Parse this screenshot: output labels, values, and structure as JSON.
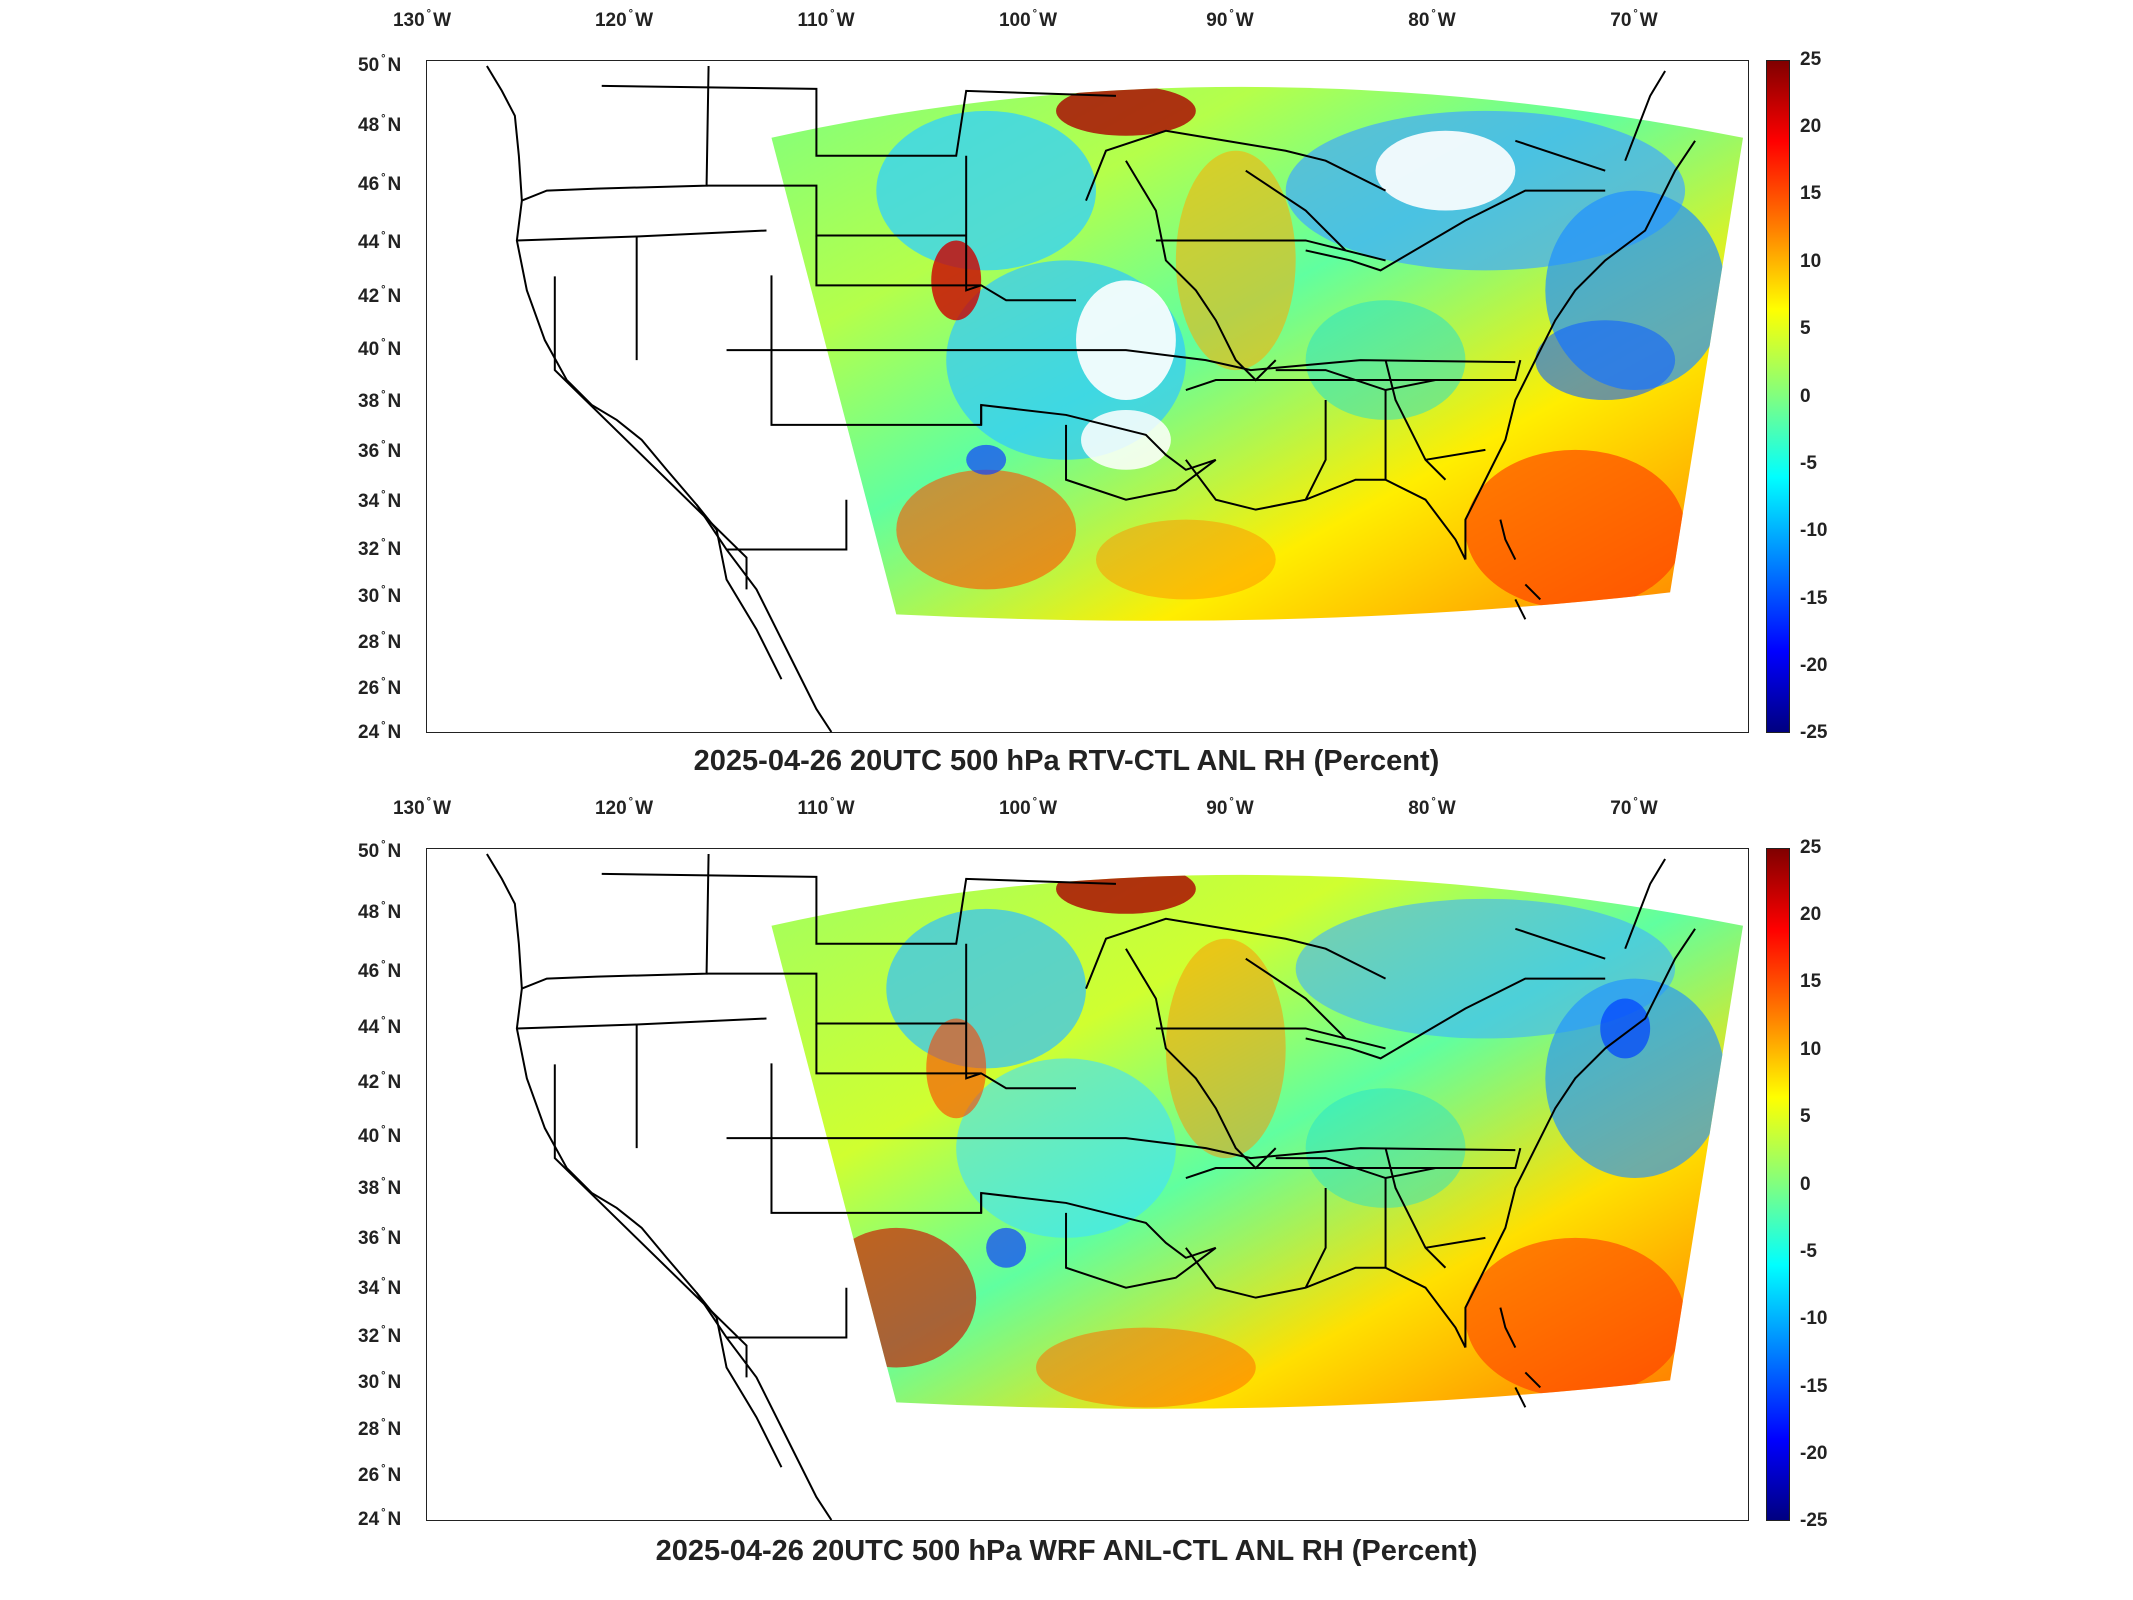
{
  "figure": {
    "x_tick_labels": [
      "130",
      "120",
      "110",
      "100",
      "90",
      "80",
      "70"
    ],
    "x_tick_suffix": "W",
    "y_tick_labels": [
      "50",
      "48",
      "46",
      "44",
      "42",
      "40",
      "38",
      "36",
      "34",
      "32",
      "30",
      "28",
      "26",
      "24"
    ],
    "y_tick_suffix": "N",
    "degree_symbol": "°",
    "colorbar_tick_labels": [
      "25",
      "20",
      "15",
      "10",
      "5",
      "0",
      "-5",
      "-10",
      "-15",
      "-20",
      "-25"
    ],
    "colormap": "jet",
    "colorbar_range": [
      -25,
      25
    ]
  },
  "panels": [
    {
      "title": "2025-04-26 20UTC 500 hPa RTV-CTL ANL RH (Percent)"
    },
    {
      "title": "2025-04-26 20UTC 500 hPa WRF ANL-CTL ANL RH (Percent)"
    }
  ],
  "colors": {
    "dark_red": "#800000",
    "red": "#ff0000",
    "orange": "#ff8000",
    "yellow": "#ffff00",
    "green": "#80ff80",
    "cyan": "#00ffff",
    "light_blue": "#0080ff",
    "blue": "#0000ff",
    "navy": "#000080"
  }
}
